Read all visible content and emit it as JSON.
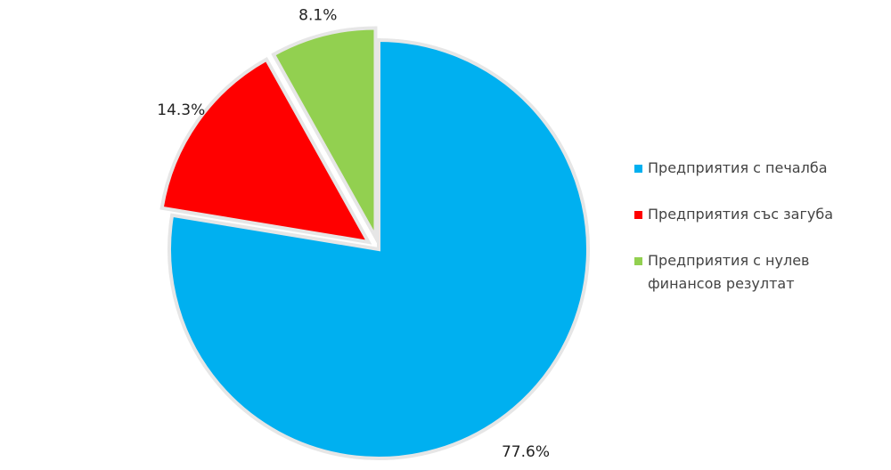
{
  "chart_data": {
    "type": "pie",
    "categories": [
      "Предприятия с печалба",
      "Предприятия със загуба",
      "Предприятия с нулев финансов резултат"
    ],
    "values": [
      77.6,
      14.3,
      8.1
    ],
    "value_labels": [
      "77.6%",
      "14.3%",
      "8.1%"
    ],
    "colors": [
      "#00b0f0",
      "#ff0000",
      "#92d050"
    ],
    "legend": "right"
  }
}
